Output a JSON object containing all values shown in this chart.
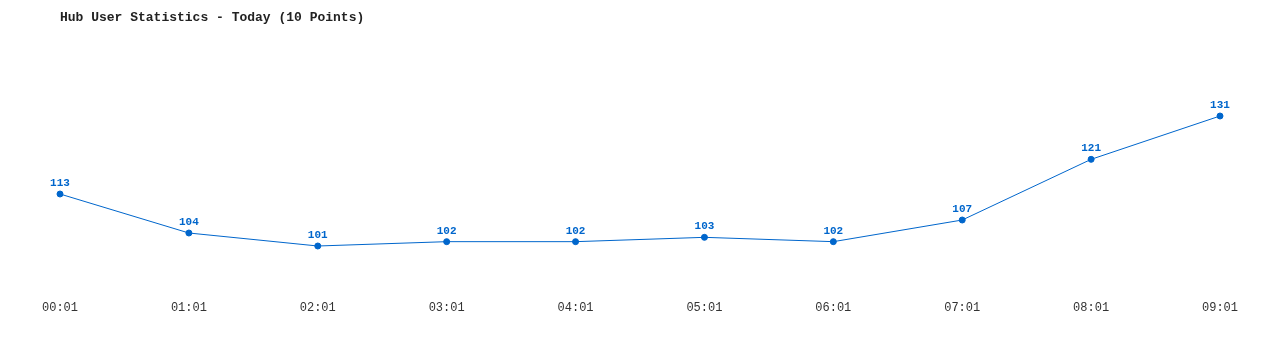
{
  "chart_data": {
    "type": "line",
    "title": "Hub User Statistics - Today (10 Points)",
    "categories": [
      "00:01",
      "01:01",
      "02:01",
      "03:01",
      "04:01",
      "05:01",
      "06:01",
      "07:01",
      "08:01",
      "09:01"
    ],
    "series": [
      {
        "color": "#0066cc",
        "values": [
          113,
          104,
          101,
          102,
          102,
          103,
          102,
          107,
          121,
          131
        ]
      }
    ],
    "data_labels": true,
    "marker": "circle",
    "line_style": "solid"
  }
}
